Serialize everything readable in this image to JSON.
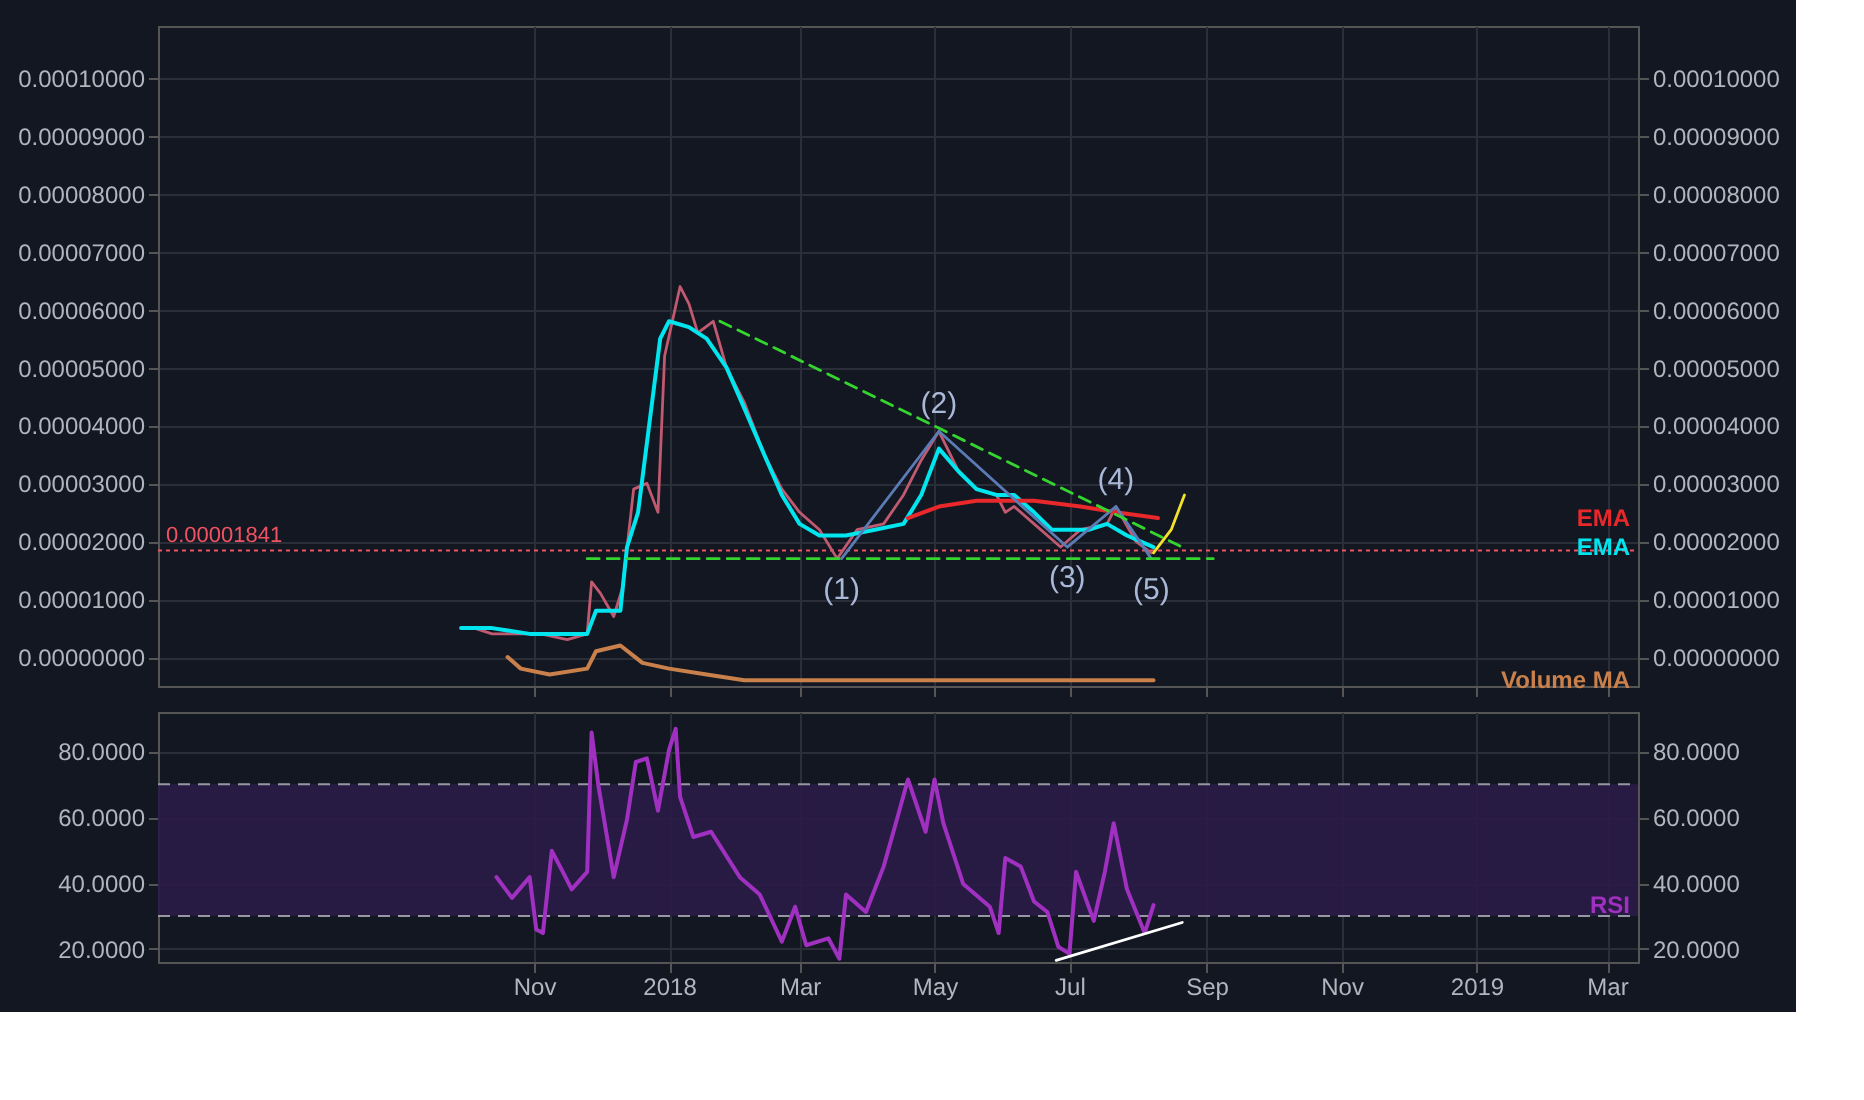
{
  "chart_data": [
    {
      "type": "line",
      "xlim": [
        "2017-05-15",
        "2019-03-15"
      ],
      "xticks": [
        {
          "value": "2017-11-01",
          "label": null
        },
        {
          "value": "2018-01-01",
          "label": null
        },
        {
          "value": "2018-03-01",
          "label": null
        },
        {
          "value": "2018-05-01",
          "label": null
        },
        {
          "value": "2018-07-01",
          "label": null
        },
        {
          "value": "2018-09-01",
          "label": null
        },
        {
          "value": "2018-11-01",
          "label": null
        },
        {
          "value": "2019-01-01",
          "label": null
        },
        {
          "value": "2019-03-01",
          "label": null
        }
      ],
      "ylim": [
        -5e-06,
        0.000109
      ],
      "yticks": [
        {
          "value": 0,
          "label": "0.00000000"
        },
        {
          "value": 1e-05,
          "label": "0.00001000"
        },
        {
          "value": 2e-05,
          "label": "0.00002000"
        },
        {
          "value": 3e-05,
          "label": "0.00003000"
        },
        {
          "value": 4e-05,
          "label": "0.00004000"
        },
        {
          "value": 5e-05,
          "label": "0.00005000"
        },
        {
          "value": 6e-05,
          "label": "0.00006000"
        },
        {
          "value": 7e-05,
          "label": "0.00007000"
        },
        {
          "value": 8e-05,
          "label": "0.00008000"
        },
        {
          "value": 9e-05,
          "label": "0.00009000"
        },
        {
          "value": 0.0001,
          "label": "0.00010000"
        }
      ],
      "y2lim": [
        -5e-06,
        0.000109
      ],
      "y2ticks": [
        {
          "value": 0,
          "label": "0.00000000"
        },
        {
          "value": 1e-05,
          "label": "0.00001000"
        },
        {
          "value": 2e-05,
          "label": "0.00002000"
        },
        {
          "value": 3e-05,
          "label": "0.00003000"
        },
        {
          "value": 4e-05,
          "label": "0.00004000"
        },
        {
          "value": 5e-05,
          "label": "0.00005000"
        },
        {
          "value": 6e-05,
          "label": "0.00006000"
        },
        {
          "value": 7e-05,
          "label": "0.00007000"
        },
        {
          "value": 8e-05,
          "label": "0.00008000"
        },
        {
          "value": 9e-05,
          "label": "0.00009000"
        },
        {
          "value": 0.0001,
          "label": "0.00010000"
        }
      ],
      "tick_labels": "y",
      "grid": true,
      "series": [
        {
          "color": "#c05a70",
          "x": [
            "2017-09-30",
            "2017-10-05",
            "2017-10-13",
            "2017-10-26",
            "2017-11-04",
            "2017-11-16",
            "2017-11-25",
            "2017-11-27",
            "2017-12-01",
            "2017-12-07",
            "2017-12-11",
            "2017-12-16",
            "2017-12-22",
            "2017-12-27",
            "2017-12-30",
            "2018-01-06",
            "2018-01-10",
            "2018-01-14",
            "2018-01-21",
            "2018-01-27",
            "2018-02-04",
            "2018-02-13",
            "2018-02-21",
            "2018-03-01",
            "2018-03-10",
            "2018-03-18",
            "2018-03-27",
            "2018-04-08",
            "2018-04-17",
            "2018-04-25",
            "2018-05-03",
            "2018-05-12",
            "2018-05-20",
            "2018-05-29",
            "2018-06-02",
            "2018-06-06",
            "2018-06-15",
            "2018-06-27",
            "2018-07-06",
            "2018-07-18",
            "2018-07-22",
            "2018-07-31",
            "2018-08-07"
          ],
          "values": [
            5e-06,
            5e-06,
            4e-06,
            4e-06,
            4e-06,
            3e-06,
            4e-06,
            1.3e-05,
            1.1e-05,
            7e-06,
            1.2e-05,
            2.9e-05,
            3e-05,
            2.5e-05,
            5.2e-05,
            6.4e-05,
            6.1e-05,
            5.6e-05,
            5.8e-05,
            5e-05,
            4.4e-05,
            3.5e-05,
            2.9e-05,
            2.5e-05,
            2.2e-05,
            1.7e-05,
            2.2e-05,
            2.3e-05,
            2.8e-05,
            3.4e-05,
            3.9e-05,
            3.2e-05,
            2.9e-05,
            2.8e-05,
            2.5e-05,
            2.6e-05,
            2.3e-05,
            1.9e-05,
            2.2e-05,
            2.3e-05,
            2.6e-05,
            2e-05,
            1.8e-05
          ]
        },
        {
          "name": "EMA",
          "color": "#00e5ee",
          "x": [
            "2017-09-29",
            "2017-10-13",
            "2017-10-30",
            "2017-11-25",
            "2017-11-29",
            "2017-12-05",
            "2017-12-10",
            "2017-12-13",
            "2017-12-18",
            "2017-12-28",
            "2018-01-01",
            "2018-01-10",
            "2018-01-18",
            "2018-01-27",
            "2018-02-04",
            "2018-02-13",
            "2018-02-21",
            "2018-03-01",
            "2018-03-10",
            "2018-03-22",
            "2018-04-04",
            "2018-04-17",
            "2018-04-25",
            "2018-05-03",
            "2018-05-12",
            "2018-05-20",
            "2018-05-29",
            "2018-06-06",
            "2018-06-15",
            "2018-06-23",
            "2018-07-01",
            "2018-07-10",
            "2018-07-18",
            "2018-07-27",
            "2018-08-08"
          ],
          "values": [
            5e-06,
            5e-06,
            4e-06,
            4e-06,
            8e-06,
            8e-06,
            8e-06,
            1.9e-05,
            2.5e-05,
            5.5e-05,
            5.8e-05,
            5.7e-05,
            5.5e-05,
            5e-05,
            4.3e-05,
            3.5e-05,
            2.8e-05,
            2.3e-05,
            2.1e-05,
            2.1e-05,
            2.2e-05,
            2.3e-05,
            2.8e-05,
            3.6e-05,
            3.2e-05,
            2.9e-05,
            2.8e-05,
            2.8e-05,
            2.5e-05,
            2.2e-05,
            2.2e-05,
            2.2e-05,
            2.3e-05,
            2.1e-05,
            1.9e-05
          ]
        },
        {
          "name": "EMA",
          "color": "#e8282b",
          "x": [
            "2018-04-19",
            "2018-05-03",
            "2018-05-20",
            "2018-06-15",
            "2018-07-06",
            "2018-07-22",
            "2018-08-10"
          ],
          "values": [
            2.4e-05,
            2.6e-05,
            2.7e-05,
            2.7e-05,
            2.6e-05,
            2.5e-05,
            2.4e-05
          ]
        },
        {
          "name": "Volume MA",
          "color": "#c9804a",
          "x": [
            "2017-10-20",
            "2017-10-26",
            "2017-11-08",
            "2017-11-25",
            "2017-11-29",
            "2017-12-10",
            "2017-12-20",
            "2018-01-01",
            "2018-01-18",
            "2018-02-04",
            "2018-05-12",
            "2018-08-08"
          ],
          "values": [
            0.0,
            -2e-06,
            -3e-06,
            -2e-06,
            1e-06,
            2e-06,
            -1e-06,
            -2e-06,
            -3e-06,
            -4e-06,
            -4e-06,
            -4e-06
          ]
        },
        {
          "type": "line",
          "color": "#5b7bb5",
          "x": [
            "2018-03-20",
            "2018-05-03",
            "2018-06-30",
            "2018-07-22",
            "2018-08-07"
          ],
          "values": [
            1.7e-05,
            3.9e-05,
            1.9e-05,
            2.6e-05,
            1.7e-05
          ]
        },
        {
          "type": "line",
          "color": "#35d42f",
          "line_style": "dashed",
          "x": [
            "2018-01-24",
            "2018-08-21"
          ],
          "values": [
            5.8e-05,
            1.9e-05
          ]
        },
        {
          "type": "line",
          "color": "#35d42f",
          "line_style": "dashed",
          "x": [
            "2017-11-25",
            "2018-09-04"
          ],
          "values": [
            1.7e-05,
            1.7e-05
          ]
        },
        {
          "type": "line",
          "color": "#f2e22a",
          "x": [
            "2018-08-08",
            "2018-08-16",
            "2018-08-22"
          ],
          "values": [
            1.8e-05,
            2.2e-05,
            2.8e-05
          ]
        }
      ],
      "ref_lines": [
        {
          "axis": "y",
          "value": 1.841e-05,
          "label": "0.00001841",
          "color": "#f05262",
          "line_style": "dotted"
        }
      ],
      "annotations": [
        {
          "text": "(1)",
          "x": "2018-03-20",
          "y": 1.7e-05
        },
        {
          "text": "(2)",
          "x": "2018-05-03",
          "y": 3.9e-05
        },
        {
          "text": "(3)",
          "x": "2018-06-30",
          "y": 1.9e-05
        },
        {
          "text": "(4)",
          "x": "2018-07-22",
          "y": 2.6e-05
        },
        {
          "text": "(5)",
          "x": "2018-08-07",
          "y": 1.7e-05
        }
      ]
    },
    {
      "type": "line",
      "xlim": [
        "2017-05-15",
        "2019-03-15"
      ],
      "xticks": [
        {
          "value": "2017-11-01",
          "label": "Nov"
        },
        {
          "value": "2018-01-01",
          "label": "2018"
        },
        {
          "value": "2018-03-01",
          "label": "Mar"
        },
        {
          "value": "2018-05-01",
          "label": "May"
        },
        {
          "value": "2018-07-01",
          "label": "Jul"
        },
        {
          "value": "2018-09-01",
          "label": "Sep"
        },
        {
          "value": "2018-11-01",
          "label": "Nov"
        },
        {
          "value": "2019-01-01",
          "label": "2019"
        },
        {
          "value": "2019-03-01",
          "label": "Mar"
        }
      ],
      "ylim": [
        16,
        92
      ],
      "yticks": [
        {
          "value": 20,
          "label": "20.0000"
        },
        {
          "value": 40,
          "label": "40.0000"
        },
        {
          "value": 60,
          "label": "60.0000"
        },
        {
          "value": 80,
          "label": "80.0000"
        }
      ],
      "y2lim": [
        16,
        92
      ],
      "y2ticks": [
        {
          "value": 20,
          "label": "20.0000"
        },
        {
          "value": 40,
          "label": "40.0000"
        },
        {
          "value": 60,
          "label": "60.0000"
        },
        {
          "value": 80,
          "label": "80.0000"
        }
      ],
      "grid": true,
      "series": [
        {
          "name": "RSI",
          "color": "#a030c0",
          "x": [
            "2017-10-15",
            "2017-10-22",
            "2017-10-30",
            "2017-11-02",
            "2017-11-05",
            "2017-11-09",
            "2017-11-14",
            "2017-11-18",
            "2017-11-25",
            "2017-11-27",
            "2017-11-30",
            "2017-12-07",
            "2017-12-13",
            "2017-12-17",
            "2017-12-22",
            "2017-12-27",
            "2018-01-01",
            "2018-01-04",
            "2018-01-06",
            "2018-01-12",
            "2018-01-20",
            "2018-02-02",
            "2018-02-11",
            "2018-02-21",
            "2018-02-27",
            "2018-03-04",
            "2018-03-14",
            "2018-03-19",
            "2018-03-22",
            "2018-03-31",
            "2018-04-08",
            "2018-04-14",
            "2018-04-19",
            "2018-04-27",
            "2018-05-01",
            "2018-05-05",
            "2018-05-14",
            "2018-05-26",
            "2018-05-30",
            "2018-06-02",
            "2018-06-09",
            "2018-06-15",
            "2018-06-21",
            "2018-06-26",
            "2018-07-01",
            "2018-07-04",
            "2018-07-12",
            "2018-07-17",
            "2018-07-21",
            "2018-07-27",
            "2018-08-04",
            "2018-08-08"
          ],
          "values": [
            41.8,
            35.5,
            41.8,
            25.9,
            24.8,
            49.8,
            43.4,
            38.1,
            43.4,
            85.8,
            69.9,
            41.8,
            59.3,
            76.8,
            77.9,
            62,
            80.5,
            86.9,
            66.2,
            54,
            55.6,
            41.8,
            36.5,
            22.2,
            32.8,
            21.1,
            23.2,
            17,
            36.5,
            31.2,
            45,
            59.3,
            71.5,
            55.6,
            71.5,
            58.2,
            39.7,
            32.8,
            24.8,
            47.6,
            45,
            34.4,
            31.2,
            20.6,
            18.5,
            43.4,
            28.5,
            43.4,
            58.2,
            38.1,
            24.8,
            33.3
          ]
        },
        {
          "type": "line",
          "color": "#ffffff",
          "x": [
            "2018-06-25",
            "2018-08-21"
          ],
          "values": [
            16.5,
            28
          ]
        }
      ],
      "bands": [
        {
          "axis": "y",
          "from": 30,
          "to": 70,
          "color": "#2a1b47"
        }
      ],
      "ref_lines": [
        {
          "axis": "y",
          "value": 70,
          "color": "#9598a1",
          "line_style": "dashed"
        },
        {
          "axis": "y",
          "value": 30,
          "color": "#9598a1",
          "line_style": "dashed"
        }
      ]
    }
  ]
}
